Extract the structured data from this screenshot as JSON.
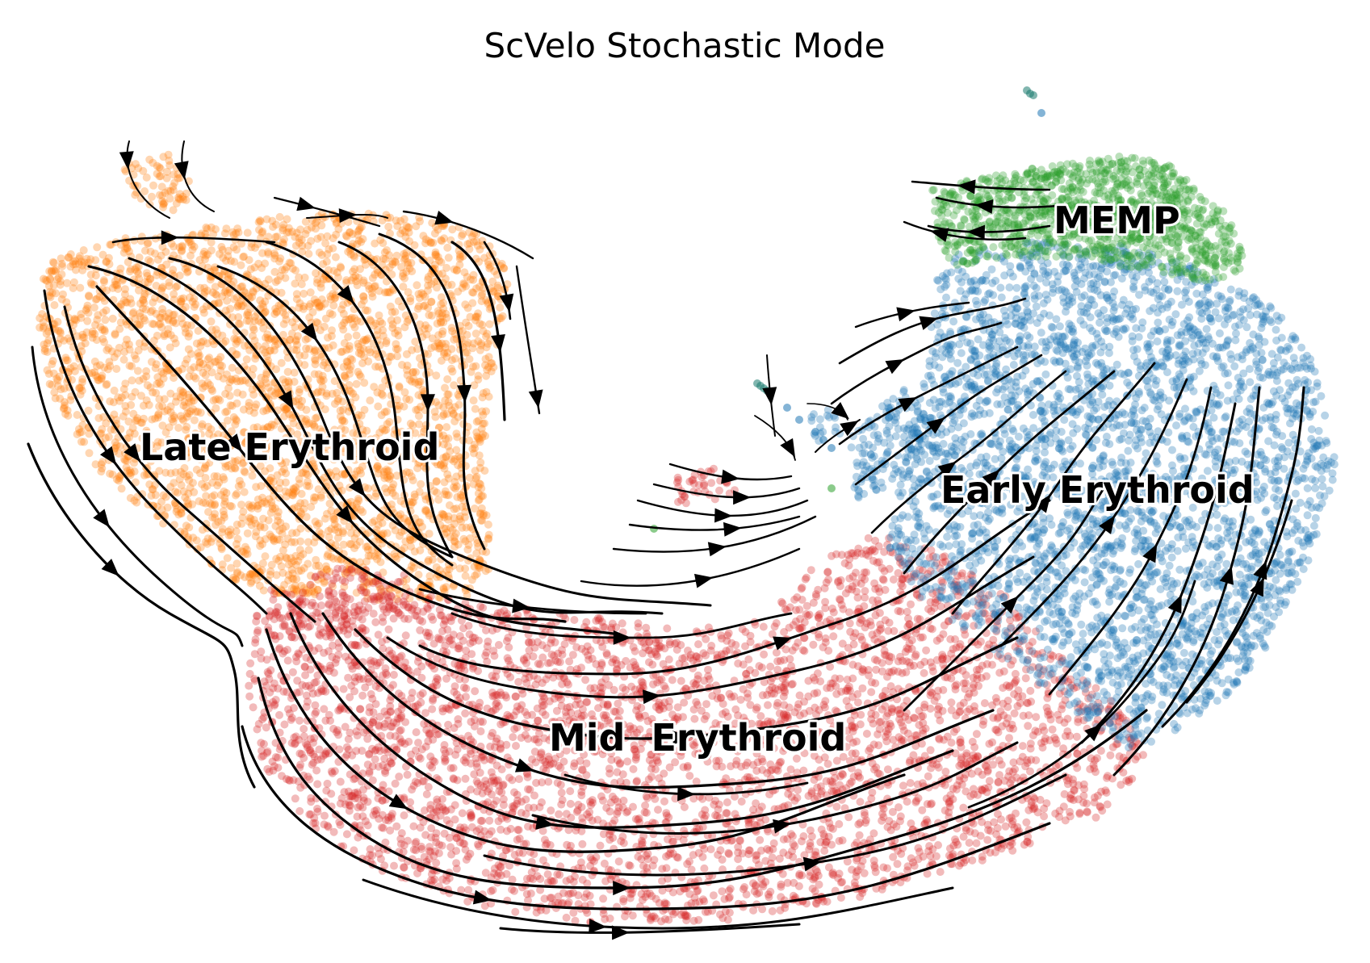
{
  "chart_data": {
    "type": "scatter",
    "title": "ScVelo Stochastic Mode",
    "xlabel": "",
    "ylabel": "",
    "axes_visible": false,
    "grid": false,
    "legend": "on data",
    "overlay": "velocity streamlines with arrowheads",
    "clusters": [
      {
        "name": "MEMP",
        "color": "#2ca02c"
      },
      {
        "name": "Early Erythroid",
        "color": "#1f77b4"
      },
      {
        "name": "Mid  Erythroid",
        "color": "#d62728"
      },
      {
        "name": "Late Erythroid",
        "color": "#ff7f0e"
      }
    ],
    "extra_point_color": "#1a7a6e",
    "stream_color": "#000000"
  }
}
